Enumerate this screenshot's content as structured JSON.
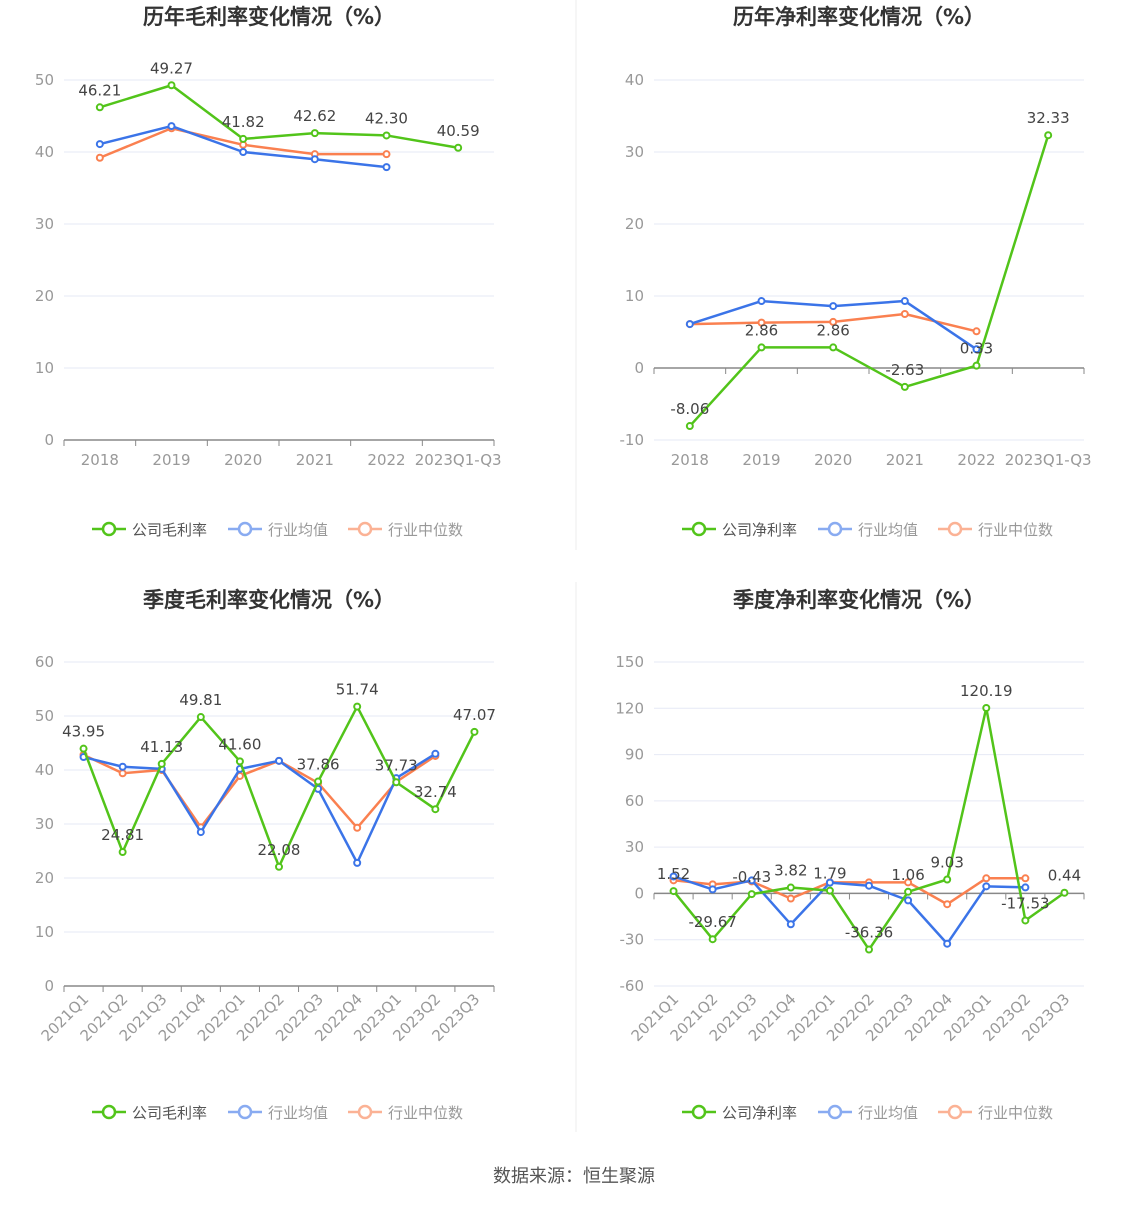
{
  "source": "数据来源：恒生聚源",
  "colors": {
    "company": "#52c41a",
    "avg": "#3b74e8",
    "median": "#fa8050",
    "grid": "#e6e9f5",
    "axis": "#888888"
  },
  "chart_data": [
    {
      "type": "line",
      "title": "历年毛利率变化情况（%）",
      "categories": [
        "2018",
        "2019",
        "2020",
        "2021",
        "2022",
        "2023Q1-Q3"
      ],
      "ylim": [
        0,
        50
      ],
      "yticks": [
        0,
        10,
        20,
        30,
        40,
        50
      ],
      "legend_position": "bottom",
      "series": [
        {
          "name": "公司毛利率",
          "values": [
            46.21,
            49.27,
            41.82,
            42.62,
            42.3,
            40.59
          ],
          "labels": [
            "46.21",
            "49.27",
            "41.82",
            "42.62",
            "42.30",
            "40.59"
          ]
        },
        {
          "name": "行业均值",
          "values": [
            41.1,
            43.6,
            40.0,
            39.0,
            37.9,
            null
          ]
        },
        {
          "name": "行业中位数",
          "values": [
            39.2,
            43.3,
            41.0,
            39.7,
            39.7,
            null
          ]
        }
      ]
    },
    {
      "type": "line",
      "title": "历年净利率变化情况（%）",
      "categories": [
        "2018",
        "2019",
        "2020",
        "2021",
        "2022",
        "2023Q1-Q3"
      ],
      "ylim": [
        -10,
        40
      ],
      "yticks": [
        -10,
        0,
        10,
        20,
        30,
        40
      ],
      "legend_position": "bottom",
      "series": [
        {
          "name": "公司净利率",
          "values": [
            -8.06,
            2.86,
            2.86,
            -2.63,
            0.33,
            32.33
          ],
          "labels": [
            "-8.06",
            "2.86",
            "2.86",
            "-2.63",
            "0.33",
            "32.33"
          ]
        },
        {
          "name": "行业均值",
          "values": [
            6.1,
            9.3,
            8.6,
            9.3,
            2.6,
            null
          ]
        },
        {
          "name": "行业中位数",
          "values": [
            6.1,
            6.3,
            6.4,
            7.5,
            5.1,
            null
          ]
        }
      ]
    },
    {
      "type": "line",
      "title": "季度毛利率变化情况（%）",
      "categories": [
        "2021Q1",
        "2021Q2",
        "2021Q3",
        "2021Q4",
        "2022Q1",
        "2022Q2",
        "2022Q3",
        "2022Q4",
        "2023Q1",
        "2023Q2",
        "2023Q3"
      ],
      "ylim": [
        0,
        60
      ],
      "yticks": [
        0,
        10,
        20,
        30,
        40,
        50,
        60
      ],
      "legend_position": "bottom",
      "series": [
        {
          "name": "公司毛利率",
          "values": [
            43.95,
            24.81,
            41.13,
            49.81,
            41.6,
            22.08,
            37.86,
            51.74,
            37.73,
            32.74,
            47.07
          ],
          "labels": [
            "43.95",
            "24.81",
            "41.13",
            "49.81",
            "41.60",
            "22.08",
            "37.86",
            "51.74",
            "37.73",
            "32.74",
            "47.07"
          ]
        },
        {
          "name": "行业均值",
          "values": [
            42.4,
            40.6,
            40.2,
            28.5,
            40.2,
            41.7,
            36.5,
            22.8,
            38.5,
            43.0,
            null
          ]
        },
        {
          "name": "行业中位数",
          "values": [
            42.8,
            39.4,
            40.0,
            29.4,
            38.9,
            41.7,
            37.6,
            29.3,
            37.8,
            42.6,
            null
          ]
        }
      ]
    },
    {
      "type": "line",
      "title": "季度净利率变化情况（%）",
      "categories": [
        "2021Q1",
        "2021Q2",
        "2021Q3",
        "2021Q4",
        "2022Q1",
        "2022Q2",
        "2022Q3",
        "2022Q4",
        "2023Q1",
        "2023Q2",
        "2023Q3"
      ],
      "ylim": [
        -60,
        150
      ],
      "yticks": [
        -60,
        -30,
        0,
        30,
        60,
        90,
        120,
        150
      ],
      "legend_position": "bottom",
      "series": [
        {
          "name": "公司净利率",
          "values": [
            1.52,
            -29.67,
            -0.43,
            3.82,
            1.79,
            -36.36,
            1.06,
            9.03,
            120.19,
            -17.53,
            0.44
          ],
          "labels": [
            "1.52",
            "-29.67",
            "-0.43",
            "3.82",
            "1.79",
            "-36.36",
            "1.06",
            "9.03",
            "120.19",
            "-17.53",
            "0.44"
          ]
        },
        {
          "name": "行业均值",
          "values": [
            11,
            2.6,
            8.5,
            -20,
            7,
            5,
            -4.5,
            -32.6,
            4.6,
            3.9,
            null
          ]
        },
        {
          "name": "行业中位数",
          "values": [
            8.5,
            5.9,
            7.8,
            -3.3,
            7.2,
            7.2,
            7.2,
            -7,
            9.8,
            9.8,
            null
          ]
        }
      ]
    }
  ]
}
